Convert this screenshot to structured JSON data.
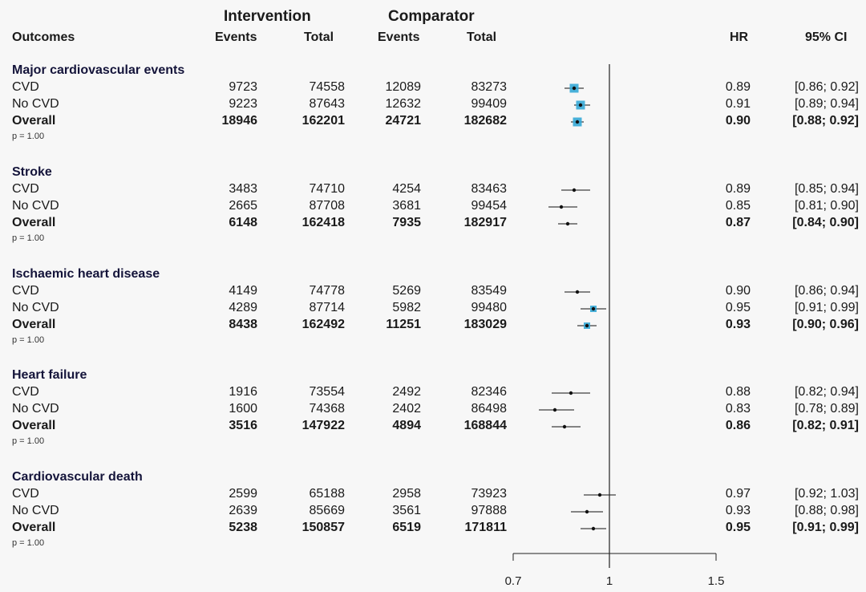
{
  "headers": {
    "group_intervention": "Intervention",
    "group_comparator": "Comparator",
    "outcomes": "Outcomes",
    "events": "Events",
    "total": "Total",
    "hr": "HR",
    "ci": "95% CI"
  },
  "chart_data": {
    "type": "forest",
    "x_ticks": [
      0.7,
      1,
      1.5
    ],
    "x_tick_labels": [
      "0.7",
      "1",
      "1.5"
    ],
    "xlim": [
      0.7,
      1.5
    ],
    "reference_line": 1,
    "sections": [
      {
        "title": "Major cardiovascular events",
        "p": "p = 1.00",
        "rows": [
          {
            "label": "CVD",
            "int_events": "9723",
            "int_total": "74558",
            "cmp_events": "12089",
            "cmp_total": "83273",
            "hr": 0.89,
            "lo": 0.86,
            "hi": 0.92,
            "hr_text": "0.89",
            "ci_text": "[0.86; 0.92]",
            "bold": false
          },
          {
            "label": "No CVD",
            "int_events": "9223",
            "int_total": "87643",
            "cmp_events": "12632",
            "cmp_total": "99409",
            "hr": 0.91,
            "lo": 0.89,
            "hi": 0.94,
            "hr_text": "0.91",
            "ci_text": "[0.89; 0.94]",
            "bold": false
          },
          {
            "label": "Overall",
            "int_events": "18946",
            "int_total": "162201",
            "cmp_events": "24721",
            "cmp_total": "182682",
            "hr": 0.9,
            "lo": 0.88,
            "hi": 0.92,
            "hr_text": "0.90",
            "ci_text": "[0.88; 0.92]",
            "bold": true
          }
        ]
      },
      {
        "title": "Stroke",
        "p": "p = 1.00",
        "rows": [
          {
            "label": "CVD",
            "int_events": "3483",
            "int_total": "74710",
            "cmp_events": "4254",
            "cmp_total": "83463",
            "hr": 0.89,
            "lo": 0.85,
            "hi": 0.94,
            "hr_text": "0.89",
            "ci_text": "[0.85; 0.94]",
            "bold": false
          },
          {
            "label": "No CVD",
            "int_events": "2665",
            "int_total": "87708",
            "cmp_events": "3681",
            "cmp_total": "99454",
            "hr": 0.85,
            "lo": 0.81,
            "hi": 0.9,
            "hr_text": "0.85",
            "ci_text": "[0.81; 0.90]",
            "bold": false
          },
          {
            "label": "Overall",
            "int_events": "6148",
            "int_total": "162418",
            "cmp_events": "7935",
            "cmp_total": "182917",
            "hr": 0.87,
            "lo": 0.84,
            "hi": 0.9,
            "hr_text": "0.87",
            "ci_text": "[0.84; 0.90]",
            "bold": true
          }
        ]
      },
      {
        "title": "Ischaemic heart disease",
        "p": "p = 1.00",
        "rows": [
          {
            "label": "CVD",
            "int_events": "4149",
            "int_total": "74778",
            "cmp_events": "5269",
            "cmp_total": "83549",
            "hr": 0.9,
            "lo": 0.86,
            "hi": 0.94,
            "hr_text": "0.90",
            "ci_text": "[0.86; 0.94]",
            "bold": false
          },
          {
            "label": "No CVD",
            "int_events": "4289",
            "int_total": "87714",
            "cmp_events": "5982",
            "cmp_total": "99480",
            "hr": 0.95,
            "lo": 0.91,
            "hi": 0.99,
            "hr_text": "0.95",
            "ci_text": "[0.91; 0.99]",
            "bold": false
          },
          {
            "label": "Overall",
            "int_events": "8438",
            "int_total": "162492",
            "cmp_events": "11251",
            "cmp_total": "183029",
            "hr": 0.93,
            "lo": 0.9,
            "hi": 0.96,
            "hr_text": "0.93",
            "ci_text": "[0.90; 0.96]",
            "bold": true
          }
        ]
      },
      {
        "title": "Heart failure",
        "p": "p = 1.00",
        "rows": [
          {
            "label": "CVD",
            "int_events": "1916",
            "int_total": "73554",
            "cmp_events": "2492",
            "cmp_total": "82346",
            "hr": 0.88,
            "lo": 0.82,
            "hi": 0.94,
            "hr_text": "0.88",
            "ci_text": "[0.82; 0.94]",
            "bold": false
          },
          {
            "label": "No CVD",
            "int_events": "1600",
            "int_total": "74368",
            "cmp_events": "2402",
            "cmp_total": "86498",
            "hr": 0.83,
            "lo": 0.78,
            "hi": 0.89,
            "hr_text": "0.83",
            "ci_text": "[0.78; 0.89]",
            "bold": false
          },
          {
            "label": "Overall",
            "int_events": "3516",
            "int_total": "147922",
            "cmp_events": "4894",
            "cmp_total": "168844",
            "hr": 0.86,
            "lo": 0.82,
            "hi": 0.91,
            "hr_text": "0.86",
            "ci_text": "[0.82; 0.91]",
            "bold": true
          }
        ]
      },
      {
        "title": "Cardiovascular death",
        "p": "p = 1.00",
        "rows": [
          {
            "label": "CVD",
            "int_events": "2599",
            "int_total": "65188",
            "cmp_events": "2958",
            "cmp_total": "73923",
            "hr": 0.97,
            "lo": 0.92,
            "hi": 1.03,
            "hr_text": "0.97",
            "ci_text": "[0.92; 1.03]",
            "bold": false
          },
          {
            "label": "No CVD",
            "int_events": "2639",
            "int_total": "85669",
            "cmp_events": "3561",
            "cmp_total": "97888",
            "hr": 0.93,
            "lo": 0.88,
            "hi": 0.98,
            "hr_text": "0.93",
            "ci_text": "[0.88; 0.98]",
            "bold": false
          },
          {
            "label": "Overall",
            "int_events": "5238",
            "int_total": "150857",
            "cmp_events": "6519",
            "cmp_total": "171811",
            "hr": 0.95,
            "lo": 0.91,
            "hi": 0.99,
            "hr_text": "0.95",
            "ci_text": "[0.91; 0.99]",
            "bold": true
          }
        ]
      }
    ]
  },
  "colors": {
    "square_fill": "#35a8d6",
    "point": "#111111",
    "line": "#111111"
  }
}
